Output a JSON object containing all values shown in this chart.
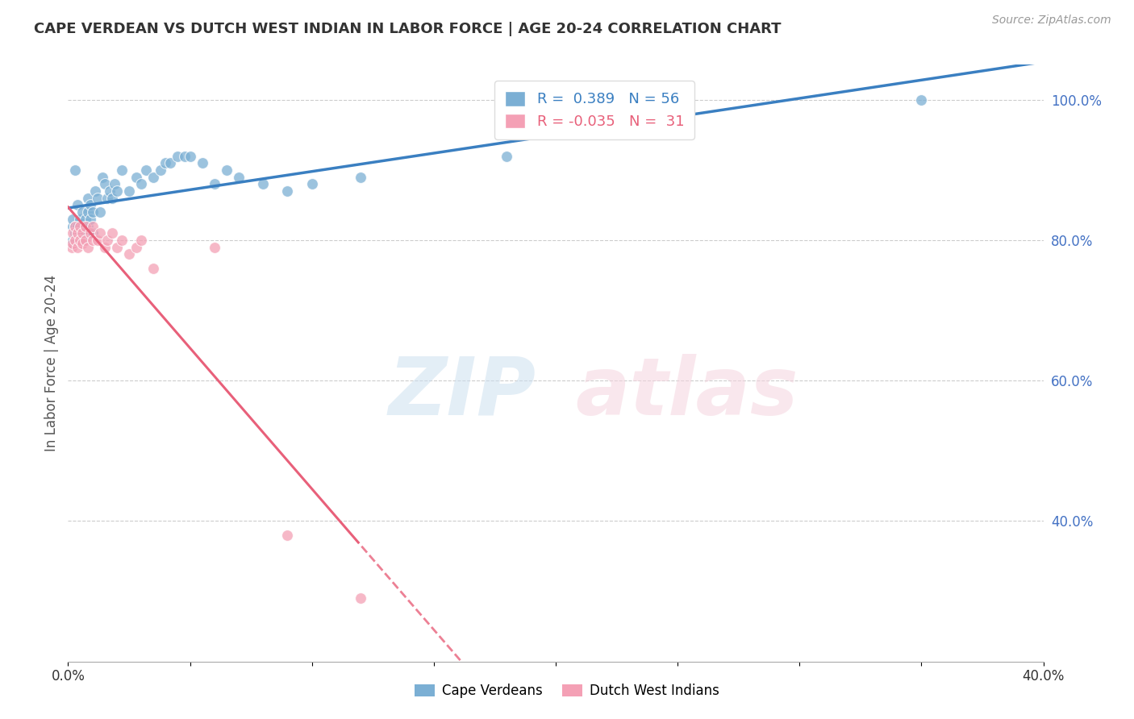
{
  "title": "CAPE VERDEAN VS DUTCH WEST INDIAN IN LABOR FORCE | AGE 20-24 CORRELATION CHART",
  "source": "Source: ZipAtlas.com",
  "ylabel": "In Labor Force | Age 20-24",
  "xlim": [
    0.0,
    0.4
  ],
  "ylim": [
    0.2,
    1.05
  ],
  "blue_R": 0.389,
  "blue_N": 56,
  "pink_R": -0.035,
  "pink_N": 31,
  "blue_color": "#7bafd4",
  "pink_color": "#f4a0b5",
  "blue_line_color": "#3a7fc1",
  "pink_line_color": "#e8607a",
  "blue_scatter_x": [
    0.0015,
    0.0018,
    0.002,
    0.002,
    0.003,
    0.003,
    0.003,
    0.004,
    0.004,
    0.004,
    0.005,
    0.005,
    0.006,
    0.006,
    0.006,
    0.007,
    0.007,
    0.008,
    0.008,
    0.008,
    0.009,
    0.009,
    0.01,
    0.01,
    0.011,
    0.012,
    0.013,
    0.014,
    0.015,
    0.016,
    0.017,
    0.018,
    0.019,
    0.02,
    0.022,
    0.025,
    0.028,
    0.03,
    0.032,
    0.035,
    0.038,
    0.04,
    0.042,
    0.045,
    0.048,
    0.05,
    0.055,
    0.06,
    0.065,
    0.07,
    0.08,
    0.09,
    0.1,
    0.12,
    0.18,
    0.35
  ],
  "blue_scatter_y": [
    0.795,
    0.8,
    0.82,
    0.83,
    0.82,
    0.81,
    0.9,
    0.81,
    0.82,
    0.85,
    0.81,
    0.83,
    0.8,
    0.82,
    0.84,
    0.81,
    0.83,
    0.82,
    0.84,
    0.86,
    0.83,
    0.85,
    0.81,
    0.84,
    0.87,
    0.86,
    0.84,
    0.89,
    0.88,
    0.86,
    0.87,
    0.86,
    0.88,
    0.87,
    0.9,
    0.87,
    0.89,
    0.88,
    0.9,
    0.89,
    0.9,
    0.91,
    0.91,
    0.92,
    0.92,
    0.92,
    0.91,
    0.88,
    0.9,
    0.89,
    0.88,
    0.87,
    0.88,
    0.89,
    0.92,
    1.0
  ],
  "pink_scatter_x": [
    0.0015,
    0.002,
    0.002,
    0.003,
    0.003,
    0.004,
    0.004,
    0.005,
    0.005,
    0.006,
    0.006,
    0.007,
    0.007,
    0.008,
    0.009,
    0.01,
    0.01,
    0.012,
    0.013,
    0.015,
    0.016,
    0.018,
    0.02,
    0.022,
    0.025,
    0.028,
    0.03,
    0.035,
    0.06,
    0.09,
    0.12
  ],
  "pink_scatter_y": [
    0.79,
    0.795,
    0.81,
    0.8,
    0.82,
    0.81,
    0.79,
    0.8,
    0.82,
    0.81,
    0.795,
    0.8,
    0.82,
    0.79,
    0.81,
    0.8,
    0.82,
    0.8,
    0.81,
    0.79,
    0.8,
    0.81,
    0.79,
    0.8,
    0.78,
    0.79,
    0.8,
    0.76,
    0.79,
    0.38,
    0.29
  ],
  "legend_cape_label": "Cape Verdeans",
  "legend_dutch_label": "Dutch West Indians"
}
